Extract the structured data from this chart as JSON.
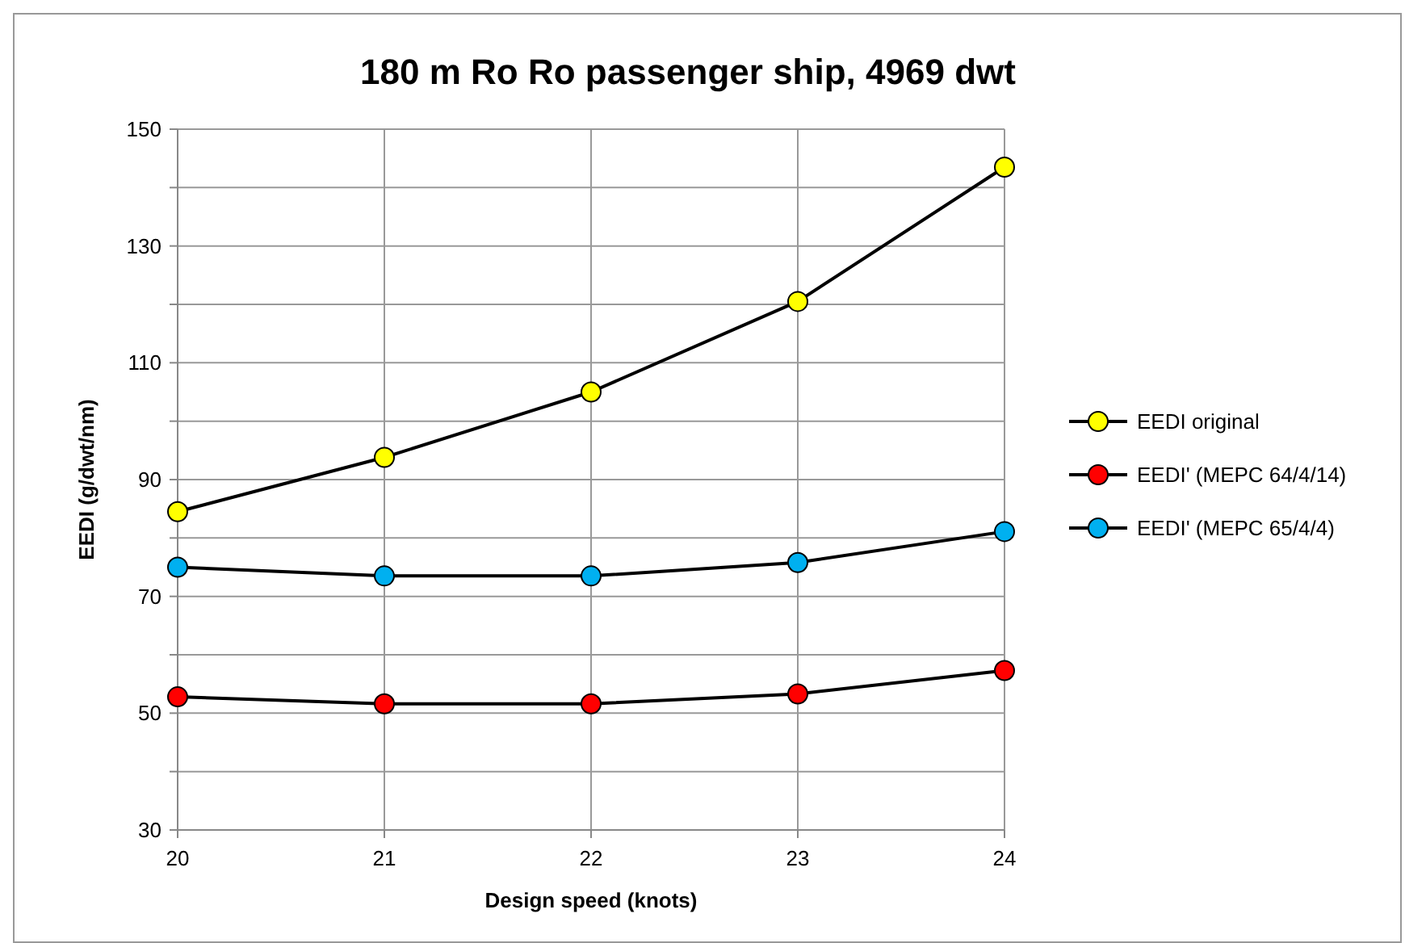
{
  "chart_data": {
    "type": "line",
    "title": "180 m Ro Ro passenger ship, 4969 dwt",
    "xlabel": "Design speed (knots)",
    "ylabel": "EEDI (g/dwt/nm)",
    "x": [
      20,
      21,
      22,
      23,
      24
    ],
    "series": [
      {
        "name": "EEDI original",
        "color": "#ffff00",
        "values": [
          84.5,
          93.8,
          105,
          120.5,
          143.5
        ]
      },
      {
        "name": "EEDI' (MEPC 64/4/14)",
        "color": "#ff0000",
        "values": [
          52.8,
          51.6,
          51.6,
          53.3,
          57.3
        ]
      },
      {
        "name": "EEDI' (MEPC 65/4/4)",
        "color": "#00b0f0",
        "values": [
          75,
          73.5,
          73.5,
          75.8,
          81.1
        ]
      }
    ],
    "xlim": [
      20,
      24
    ],
    "xticks": [
      20,
      21,
      22,
      23,
      24
    ],
    "ylim": [
      30,
      150
    ],
    "yticks": [
      30,
      {
        "value": 40,
        "label": null
      },
      50,
      {
        "value": 60,
        "label": null
      },
      70,
      {
        "value": 80,
        "label": null
      },
      90,
      {
        "value": 100,
        "label": null
      },
      110,
      {
        "value": 120,
        "label": null
      },
      130,
      {
        "value": 140,
        "label": null
      },
      150
    ],
    "grid": true,
    "legend": "right",
    "marker": "circle",
    "line_style": "solid"
  }
}
